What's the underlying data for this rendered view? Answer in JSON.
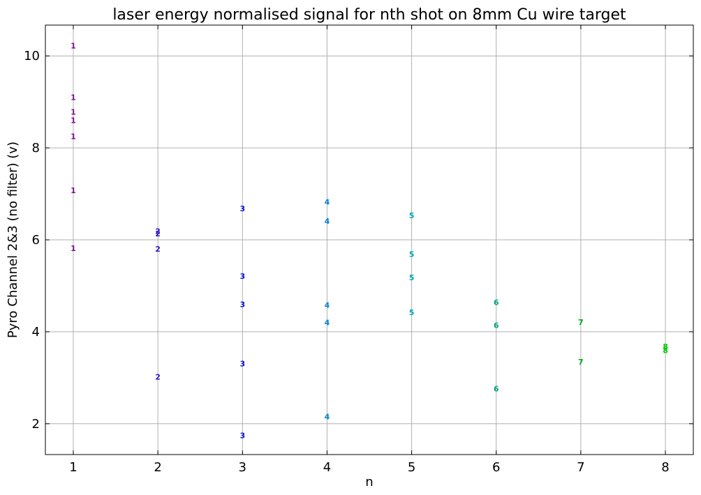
{
  "chart_data": {
    "type": "scatter",
    "title": "laser energy normalised signal for nth shot on 8mm Cu wire target",
    "xlabel": "n",
    "ylabel": "Pyro Channel 2&3 (no filter) (v)",
    "xlim": [
      0.67,
      8.33
    ],
    "ylim": [
      1.33,
      10.67
    ],
    "xticks": [
      1,
      2,
      3,
      4,
      5,
      6,
      7,
      8
    ],
    "yticks": [
      2,
      4,
      6,
      8,
      10
    ],
    "grid": true,
    "points": [
      {
        "x": 1,
        "y": 10.22,
        "label": "1",
        "color": "#7a0f8a"
      },
      {
        "x": 1,
        "y": 9.1,
        "label": "1",
        "color": "#7a0f8a"
      },
      {
        "x": 1,
        "y": 8.78,
        "label": "1",
        "color": "#7a0f8a"
      },
      {
        "x": 1,
        "y": 8.6,
        "label": "1",
        "color": "#7a0f8a"
      },
      {
        "x": 1,
        "y": 8.25,
        "label": "1",
        "color": "#7a0f8a"
      },
      {
        "x": 1,
        "y": 7.08,
        "label": "1",
        "color": "#7a0f8a"
      },
      {
        "x": 1,
        "y": 5.82,
        "label": "1",
        "color": "#7a0f8a"
      },
      {
        "x": 2,
        "y": 6.19,
        "label": "2",
        "color": "#3a18c8"
      },
      {
        "x": 2,
        "y": 6.14,
        "label": "2",
        "color": "#3a18c8"
      },
      {
        "x": 2,
        "y": 5.8,
        "label": "2",
        "color": "#3a18c8"
      },
      {
        "x": 2,
        "y": 3.02,
        "label": "2",
        "color": "#3a18c8"
      },
      {
        "x": 3,
        "y": 6.68,
        "label": "3",
        "color": "#0a14dc"
      },
      {
        "x": 3,
        "y": 5.21,
        "label": "3",
        "color": "#0a14dc"
      },
      {
        "x": 3,
        "y": 4.6,
        "label": "3",
        "color": "#0a14dc"
      },
      {
        "x": 3,
        "y": 3.31,
        "label": "3",
        "color": "#0a14dc"
      },
      {
        "x": 3,
        "y": 1.75,
        "label": "3",
        "color": "#0a14dc"
      },
      {
        "x": 4,
        "y": 6.83,
        "label": "4",
        "color": "#0a86d8"
      },
      {
        "x": 4,
        "y": 6.41,
        "label": "4",
        "color": "#0a86d8"
      },
      {
        "x": 4,
        "y": 4.58,
        "label": "4",
        "color": "#0a86d8"
      },
      {
        "x": 4,
        "y": 4.2,
        "label": "4",
        "color": "#0a86d8"
      },
      {
        "x": 4,
        "y": 2.16,
        "label": "4",
        "color": "#0a86d8"
      },
      {
        "x": 5,
        "y": 6.53,
        "label": "5",
        "color": "#00a8bd"
      },
      {
        "x": 5,
        "y": 5.69,
        "label": "5",
        "color": "#00a8bd"
      },
      {
        "x": 5,
        "y": 5.18,
        "label": "5",
        "color": "#00a8bd"
      },
      {
        "x": 5,
        "y": 4.42,
        "label": "5",
        "color": "#00a8bd"
      },
      {
        "x": 6,
        "y": 4.64,
        "label": "6",
        "color": "#00a585"
      },
      {
        "x": 6,
        "y": 4.14,
        "label": "6",
        "color": "#00a585"
      },
      {
        "x": 6,
        "y": 2.76,
        "label": "6",
        "color": "#00a585"
      },
      {
        "x": 7,
        "y": 4.21,
        "label": "7",
        "color": "#00a81e"
      },
      {
        "x": 7,
        "y": 3.35,
        "label": "7",
        "color": "#00a81e"
      },
      {
        "x": 8,
        "y": 3.68,
        "label": "8",
        "color": "#00cc00"
      },
      {
        "x": 8,
        "y": 3.6,
        "label": "8",
        "color": "#00cc00"
      }
    ]
  }
}
